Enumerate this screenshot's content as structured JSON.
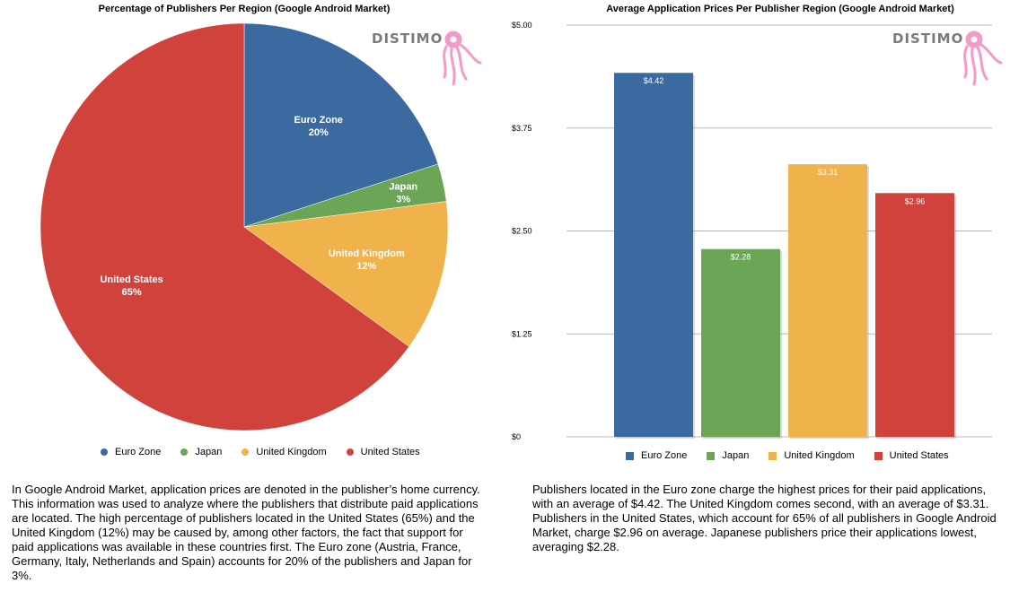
{
  "logo": {
    "text": "DISTIMO",
    "color": "#f29bc8",
    "icon": "octopus-icon"
  },
  "colors": {
    "euro": "#3b6aa0",
    "japan": "#6aa655",
    "uk": "#f0b24a",
    "us": "#d0433c"
  },
  "left": {
    "title": "Percentage of Publishers Per Region (Google Android Market)",
    "caption": "In Google Android Market, application prices are denoted in the publisher’s home currency. This information was used to analyze where the publishers that distribute paid applications are located. The high percentage of publishers located in the United States (65%) and the United Kingdom  (12%) may be caused by, among other factors, the fact that support for paid applications was available in these countries first. The Euro zone (Austria, France, Germany, Italy, Netherlands and Spain) accounts for 20% of the publishers and Japan for 3%.",
    "legend": [
      "Euro Zone",
      "Japan",
      "United Kingdom",
      "United States"
    ]
  },
  "right": {
    "title": "Average Application Prices Per Publisher Region (Google Android Market)",
    "caption": "Publishers located in the Euro zone charge the highest prices for their paid applications, with an average of $4.42. The United Kingdom comes second, with an average of $3.31. Publishers in the United States, which account for 65% of all publishers in Google Android Market, charge $2.96 on average. Japanese publishers price their applications lowest, averaging $2.28.",
    "legend": [
      "Euro Zone",
      "Japan",
      "United Kingdom",
      "United States"
    ]
  },
  "chart_data": [
    {
      "type": "pie",
      "title": "Percentage of Publishers Per Region (Google Android Market)",
      "slices": [
        {
          "label": "Euro Zone",
          "value": 20,
          "display": "20%"
        },
        {
          "label": "Japan",
          "value": 3,
          "display": "3%"
        },
        {
          "label": "United Kingdom",
          "value": 12,
          "display": "12%"
        },
        {
          "label": "United States",
          "value": 65,
          "display": "65%"
        }
      ],
      "legend_position": "bottom"
    },
    {
      "type": "bar",
      "title": "Average Application Prices Per Publisher Region (Google Android Market)",
      "categories": [
        "Euro Zone",
        "Japan",
        "United Kingdom",
        "United States"
      ],
      "values": [
        4.42,
        2.28,
        3.31,
        2.96
      ],
      "value_labels": [
        "$4.42",
        "$2.28",
        "$3.31",
        "$2.96"
      ],
      "ylim": [
        0,
        5
      ],
      "yticks": [
        0,
        1.25,
        2.5,
        3.75,
        5
      ],
      "ytick_labels": [
        "$0",
        "$1.25",
        "$2.50",
        "$3.75",
        "$5.00"
      ],
      "grid": true,
      "legend_position": "bottom"
    }
  ]
}
